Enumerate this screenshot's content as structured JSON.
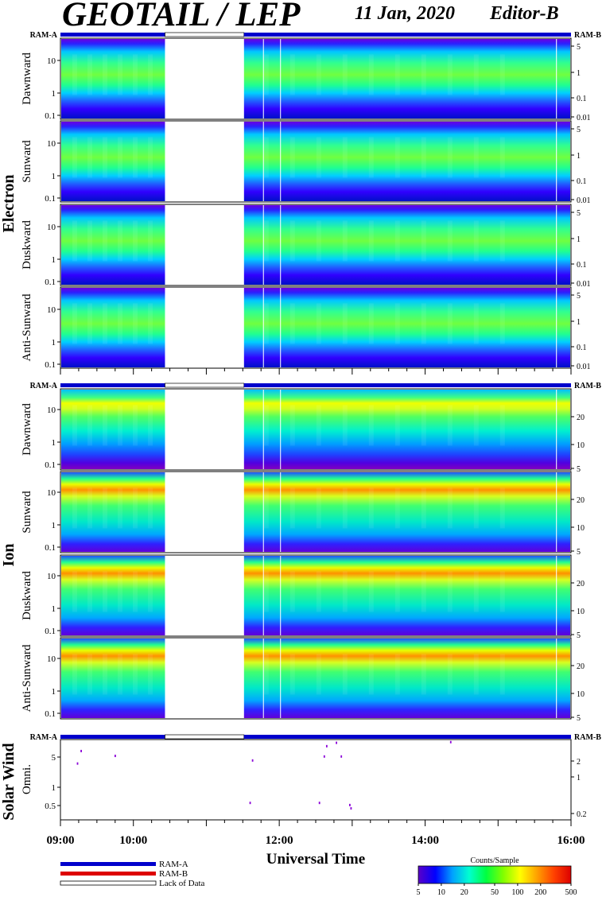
{
  "header": {
    "title": "GEOTAIL / LEP",
    "date": "11 Jan, 2020",
    "editor": "Editor-B"
  },
  "colors": {
    "ram_a": "#0000cc",
    "ram_b": "#dd0000",
    "lack": "#ffffff"
  },
  "ram_labels": {
    "left": "RAM-A",
    "right": "RAM-B"
  },
  "chart_data": {
    "type": "heatmap",
    "xlabel": "Universal Time",
    "x_range": [
      "09:00",
      "16:00"
    ],
    "x_ticks": [
      "09:00",
      "10:00",
      "12:00",
      "14:00",
      "16:00"
    ],
    "data_gap": [
      "10:26",
      "11:31"
    ],
    "groups": [
      {
        "name": "Electron",
        "panels": [
          {
            "name": "Dawnward",
            "left_ticks": [
              "10",
              "1",
              "0.1"
            ],
            "right_ticks": [
              "5",
              "1",
              "0.1",
              "0.01"
            ]
          },
          {
            "name": "Sunward",
            "left_ticks": [
              "10",
              "1",
              "0.1"
            ],
            "right_ticks": [
              "5",
              "1",
              "0.1",
              "0.01"
            ]
          },
          {
            "name": "Duskward",
            "left_ticks": [
              "10",
              "1",
              "0.1"
            ],
            "right_ticks": [
              "5",
              "1",
              "0.1",
              "0.01"
            ]
          },
          {
            "name": "Anti-Sunward",
            "left_ticks": [
              "10",
              "1",
              "0.1"
            ],
            "right_ticks": [
              "5",
              "1",
              "0.1",
              "0.01"
            ]
          }
        ]
      },
      {
        "name": "Ion",
        "panels": [
          {
            "name": "Dawnward",
            "left_ticks": [
              "10",
              "1",
              "0.1"
            ],
            "right_ticks": [
              "20",
              "10",
              "5"
            ]
          },
          {
            "name": "Sunward",
            "left_ticks": [
              "10",
              "1",
              "0.1"
            ],
            "right_ticks": [
              "20",
              "10",
              "5"
            ]
          },
          {
            "name": "Duskward",
            "left_ticks": [
              "10",
              "1",
              "0.1"
            ],
            "right_ticks": [
              "20",
              "10",
              "5"
            ]
          },
          {
            "name": "Anti-Sunward",
            "left_ticks": [
              "10",
              "1",
              "0.1"
            ],
            "right_ticks": [
              "20",
              "10",
              "5"
            ]
          }
        ]
      },
      {
        "name": "Solar Wind",
        "panels": [
          {
            "name": "Omni.",
            "left_ticks": [
              "5",
              "1",
              "0.5"
            ],
            "right_ticks": [
              "2",
              "1",
              "0.2"
            ]
          }
        ]
      }
    ],
    "solar_wind_points": [
      {
        "t": "09:14",
        "e": 3.0
      },
      {
        "t": "09:17",
        "e": 5.0
      },
      {
        "t": "09:45",
        "e": 4.1
      },
      {
        "t": "11:36",
        "e": 0.6
      },
      {
        "t": "11:38",
        "e": 3.4
      },
      {
        "t": "12:33",
        "e": 0.6
      },
      {
        "t": "12:37",
        "e": 4.0
      },
      {
        "t": "12:39",
        "e": 6.1
      },
      {
        "t": "12:47",
        "e": 7.0
      },
      {
        "t": "12:51",
        "e": 4.0
      },
      {
        "t": "12:58",
        "e": 0.55
      },
      {
        "t": "12:59",
        "e": 0.48
      },
      {
        "t": "14:21",
        "e": 7.2
      }
    ],
    "legend": {
      "ram_a": "RAM-A",
      "ram_b": "RAM-B",
      "lack": "Lack of Data"
    },
    "colorbar": {
      "title": "Counts/Sample",
      "ticks": [
        "5",
        "10",
        "20",
        "50",
        "100",
        "200",
        "500"
      ],
      "colors": [
        "#5a00c8",
        "#0000ff",
        "#00a0ff",
        "#00ffd0",
        "#00ff40",
        "#80ff00",
        "#ffff00",
        "#ffa000",
        "#ff4000",
        "#dc0000"
      ]
    }
  }
}
